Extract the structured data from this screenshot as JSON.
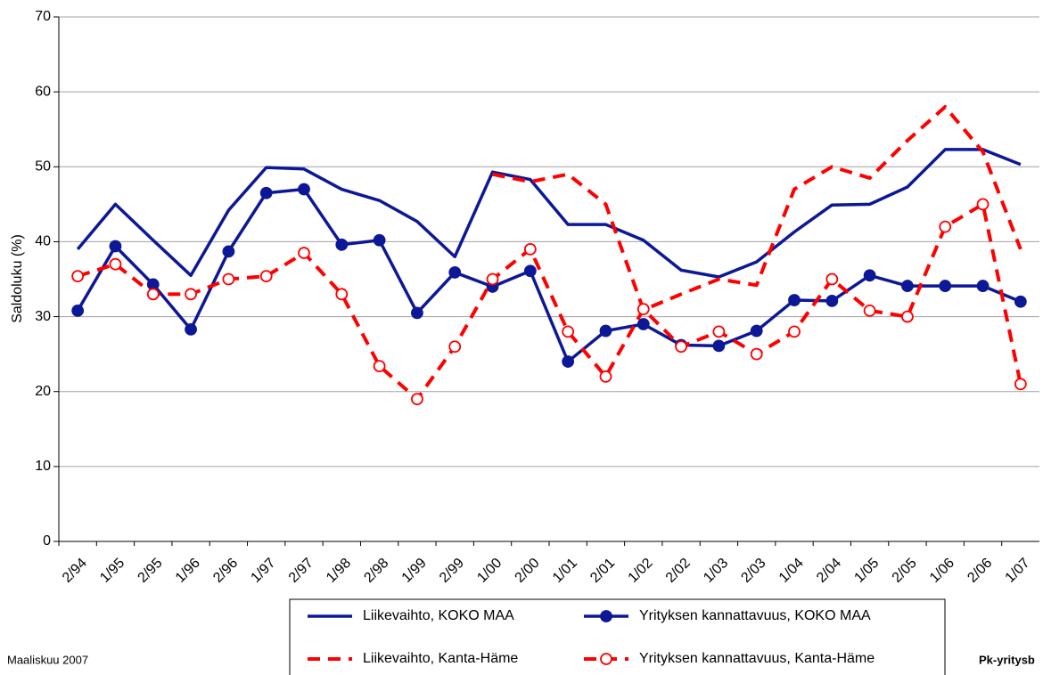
{
  "chart_data": {
    "type": "line",
    "y_label": "Saldoluku (%)",
    "categories": [
      "2/94",
      "1/95",
      "2/95",
      "1/96",
      "2/96",
      "1/97",
      "2/97",
      "1/98",
      "2/98",
      "1/99",
      "2/99",
      "1/00",
      "2/00",
      "1/01",
      "2/01",
      "1/02",
      "2/02",
      "1/03",
      "2/03",
      "1/04",
      "2/04",
      "1/05",
      "2/05",
      "1/06",
      "2/06",
      "1/07"
    ],
    "series": [
      {
        "name": "Liikevaihto, KOKO MAA",
        "color": "#0d1896",
        "style": "solid",
        "marker": "none",
        "values": [
          39,
          45,
          40.2,
          35.5,
          44.2,
          49.9,
          49.7,
          47,
          45.5,
          42.7,
          38,
          49.3,
          48.3,
          42.3,
          42.3,
          40.2,
          36.2,
          35.3,
          37.3,
          41.3,
          44.9,
          45,
          47.3,
          52.3,
          52.3,
          50.3
        ]
      },
      {
        "name": "Yrityksen kannattavuus, KOKO MAA",
        "color": "#0d1896",
        "style": "solid",
        "marker": "filled",
        "values": [
          30.8,
          39.4,
          34.3,
          28.3,
          38.7,
          46.5,
          47,
          39.6,
          40.2,
          30.5,
          35.9,
          34,
          36.1,
          24,
          28.1,
          29,
          26.2,
          26.1,
          28.1,
          32.2,
          32.1,
          35.5,
          34.1,
          34.1,
          34.1,
          32
        ]
      },
      {
        "name": "Liikevaihto, Kanta-Häme",
        "color": "#ff0000",
        "style": "dashed",
        "marker": "none",
        "values": [
          null,
          null,
          null,
          null,
          null,
          null,
          null,
          null,
          null,
          null,
          null,
          49,
          48,
          49,
          45,
          30.9,
          33,
          35,
          34.2,
          47,
          50,
          48.5,
          53.5,
          58,
          52,
          39
        ]
      },
      {
        "name": "Yrityksen kannattavuus, Kanta-Häme",
        "color": "#ff0000",
        "style": "dashed",
        "marker": "open",
        "values": [
          35.4,
          37,
          33,
          33,
          35,
          35.4,
          38.5,
          33,
          23.4,
          19,
          26,
          35,
          39,
          28,
          22,
          31,
          26,
          28,
          25,
          28,
          35,
          30.8,
          30,
          42,
          45,
          21
        ]
      }
    ],
    "ylim": [
      0,
      70
    ],
    "yticks": [
      0,
      10,
      20,
      30,
      40,
      50,
      60,
      70
    ],
    "grid": true,
    "legend": "bottom",
    "footer_left": "Maaliskuu 2007",
    "footer_right": "Pk-yritysb"
  }
}
